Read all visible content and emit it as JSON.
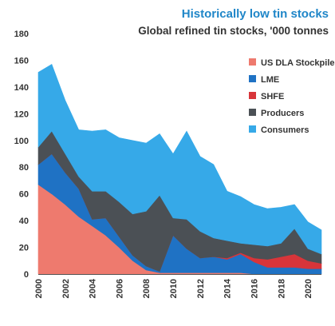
{
  "chart_data": {
    "type": "area",
    "stacked": true,
    "title": "Historically low tin stocks",
    "subtitle": "Global refined tin stocks, '000 tonnes",
    "xlabel": "",
    "ylabel": "",
    "ylim": [
      0,
      180
    ],
    "xlim": [
      2000,
      2021
    ],
    "y_ticks": [
      0,
      20,
      40,
      60,
      80,
      100,
      120,
      140,
      160,
      180
    ],
    "x_ticks": [
      2000,
      2002,
      2004,
      2006,
      2008,
      2010,
      2012,
      2014,
      2016,
      2018,
      2020
    ],
    "grid": false,
    "legend_position": "top-right",
    "x": [
      2000,
      2001,
      2002,
      2003,
      2004,
      2005,
      2006,
      2007,
      2008,
      2009,
      2010,
      2011,
      2012,
      2013,
      2014,
      2015,
      2016,
      2017,
      2018,
      2019,
      2020,
      2021
    ],
    "series": [
      {
        "name": "US DLA Stockpile",
        "color": "#ee7a6e",
        "values": [
          67,
          60,
          52,
          43,
          36,
          29,
          20,
          10,
          3,
          1,
          1,
          1,
          1,
          1,
          1,
          1,
          0,
          0,
          0,
          0,
          0,
          0
        ]
      },
      {
        "name": "LME",
        "color": "#1f72c4",
        "values": [
          15,
          30,
          24,
          21,
          5,
          13,
          8,
          4,
          3,
          1,
          28,
          18,
          11,
          12,
          10,
          14,
          9,
          5,
          5,
          5,
          4,
          4
        ]
      },
      {
        "name": "SHFE",
        "color": "#d8353a",
        "values": [
          0,
          0,
          0,
          0,
          0,
          0,
          0,
          0,
          0,
          0,
          0,
          0,
          0,
          0,
          1,
          1,
          3,
          6,
          8,
          10,
          6,
          4
        ]
      },
      {
        "name": "Producers",
        "color": "#4b5055",
        "values": [
          13,
          17,
          14,
          9,
          21,
          20,
          26,
          31,
          41,
          57,
          13,
          22,
          20,
          14,
          13,
          7,
          10,
          10,
          10,
          19,
          9,
          7
        ]
      },
      {
        "name": "Consumers",
        "color": "#36a9e8",
        "values": [
          56,
          50,
          40,
          35,
          45,
          46,
          48,
          55,
          51,
          46,
          48,
          66,
          56,
          55,
          37,
          35,
          30,
          28,
          27,
          18,
          20,
          18
        ]
      }
    ]
  }
}
